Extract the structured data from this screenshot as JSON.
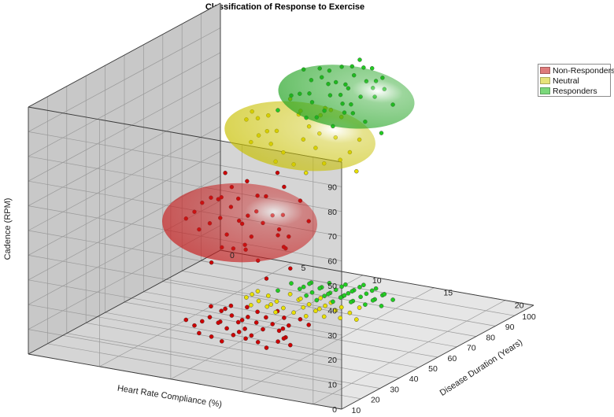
{
  "chart_data": {
    "type": "scatter",
    "title": "Classification of Response to Exercise",
    "xlabel": "Heart Rate Compliance (%)",
    "ylabel": "Disease Duration (Years)",
    "zlabel": "Cadence (RPM)",
    "xlim": [
      0,
      100
    ],
    "ylim": [
      0,
      22
    ],
    "zlim": [
      0,
      100
    ],
    "x_ticks": [
      10,
      20,
      30,
      40,
      50,
      60,
      70,
      80,
      90,
      100
    ],
    "y_ticks": [
      0,
      5,
      10,
      15,
      20
    ],
    "z_ticks": [
      0,
      10,
      20,
      30,
      40,
      50,
      60,
      70,
      80,
      90
    ],
    "grid": true,
    "legend_position": "top-right",
    "series": [
      {
        "name": "Non-Responders",
        "color": "#cc0000",
        "ellipsoid_color": "#c81e1e",
        "ellipsoid": {
          "center": [
            47,
            8.5,
            42
          ],
          "radii": [
            19,
            4.8,
            13
          ]
        },
        "points": [
          [
            36,
            8,
            30
          ],
          [
            40,
            9,
            35
          ],
          [
            44,
            8,
            38
          ],
          [
            48,
            7,
            42
          ],
          [
            52,
            9,
            45
          ],
          [
            38,
            11,
            33
          ],
          [
            42,
            10,
            40
          ],
          [
            46,
            6,
            48
          ],
          [
            50,
            8,
            50
          ],
          [
            54,
            7,
            52
          ],
          [
            58,
            6,
            55
          ],
          [
            60,
            8,
            47
          ],
          [
            45,
            12,
            36
          ],
          [
            49,
            11,
            41
          ],
          [
            53,
            10,
            44
          ],
          [
            57,
            9,
            49
          ],
          [
            62,
            7,
            51
          ],
          [
            40,
            13,
            31
          ],
          [
            44,
            12,
            37
          ],
          [
            48,
            10,
            43
          ],
          [
            52,
            8,
            39
          ],
          [
            56,
            6,
            46
          ],
          [
            59,
            10,
            53
          ],
          [
            63,
            9,
            56
          ],
          [
            35,
            12,
            28
          ],
          [
            43,
            9,
            45
          ],
          [
            47,
            7,
            50
          ],
          [
            51,
            11,
            46
          ],
          [
            55,
            8,
            41
          ],
          [
            39,
            10,
            36
          ],
          [
            58,
            5,
            44
          ],
          [
            61,
            6,
            40
          ],
          [
            37,
            7,
            42
          ],
          [
            42,
            6,
            46
          ],
          [
            46,
            9,
            34
          ],
          [
            50,
            6,
            38
          ],
          [
            54,
            11,
            36
          ],
          [
            57,
            12,
            42
          ],
          [
            34,
            9,
            38
          ],
          [
            41,
            12,
            43
          ],
          [
            45,
            5,
            41
          ],
          [
            60,
            11,
            48
          ]
        ]
      },
      {
        "name": "Neutral",
        "color": "#e8e000",
        "ellipsoid_color": "#c8c000",
        "ellipsoid": {
          "center": [
            71,
            9.5,
            68
          ],
          "radii": [
            13,
            5,
            12
          ]
        },
        "points": [
          [
            64,
            10,
            60
          ],
          [
            66,
            9,
            63
          ],
          [
            68,
            11,
            66
          ],
          [
            70,
            8,
            69
          ],
          [
            72,
            10,
            72
          ],
          [
            74,
            9,
            75
          ],
          [
            76,
            11,
            78
          ],
          [
            65,
            12,
            62
          ],
          [
            67,
            8,
            65
          ],
          [
            69,
            10,
            68
          ],
          [
            71,
            12,
            70
          ],
          [
            73,
            7,
            73
          ],
          [
            75,
            9,
            76
          ],
          [
            63,
            11,
            58
          ],
          [
            66,
            13,
            64
          ],
          [
            68,
            7,
            67
          ],
          [
            70,
            11,
            71
          ],
          [
            72,
            6,
            74
          ],
          [
            74,
            12,
            77
          ],
          [
            77,
            8,
            79
          ],
          [
            62,
            9,
            61
          ],
          [
            64,
            7,
            66
          ],
          [
            67,
            14,
            60
          ],
          [
            69,
            6,
            72
          ],
          [
            71,
            13,
            65
          ],
          [
            73,
            11,
            80
          ],
          [
            75,
            6,
            70
          ],
          [
            78,
            10,
            74
          ],
          [
            65,
            8,
            71
          ],
          [
            76,
            13,
            68
          ]
        ]
      },
      {
        "name": "Responders",
        "color": "#22cc22",
        "ellipsoid_color": "#1fa21f",
        "ellipsoid": {
          "center": [
            84,
            11,
            80
          ],
          "radii": [
            12,
            4.5,
            11
          ]
        },
        "points": [
          [
            78,
            9,
            72
          ],
          [
            80,
            10,
            75
          ],
          [
            82,
            11,
            78
          ],
          [
            84,
            12,
            81
          ],
          [
            86,
            10,
            84
          ],
          [
            88,
            11,
            87
          ],
          [
            90,
            12,
            90
          ],
          [
            79,
            13,
            74
          ],
          [
            81,
            9,
            77
          ],
          [
            83,
            10,
            80
          ],
          [
            85,
            11,
            83
          ],
          [
            87,
            12,
            86
          ],
          [
            89,
            10,
            89
          ],
          [
            77,
            11,
            71
          ],
          [
            80,
            12,
            76
          ],
          [
            82,
            8,
            79
          ],
          [
            84,
            13,
            82
          ],
          [
            86,
            9,
            85
          ],
          [
            88,
            13,
            88
          ],
          [
            91,
            11,
            92
          ],
          [
            78,
            7,
            73
          ],
          [
            80,
            14,
            70
          ],
          [
            82,
            10,
            85
          ],
          [
            84,
            8,
            88
          ],
          [
            86,
            14,
            79
          ],
          [
            88,
            8,
            82
          ],
          [
            90,
            9,
            86
          ],
          [
            92,
            12,
            84
          ],
          [
            79,
            12,
            80
          ],
          [
            81,
            11,
            82
          ],
          [
            83,
            13,
            86
          ],
          [
            85,
            7,
            76
          ],
          [
            87,
            11,
            91
          ],
          [
            89,
            13,
            83
          ],
          [
            83,
            11,
            74
          ],
          [
            85,
            9,
            89
          ],
          [
            87,
            8,
            77
          ],
          [
            91,
            10,
            81
          ],
          [
            76,
            10,
            74
          ],
          [
            93,
            11,
            88
          ]
        ]
      }
    ]
  }
}
